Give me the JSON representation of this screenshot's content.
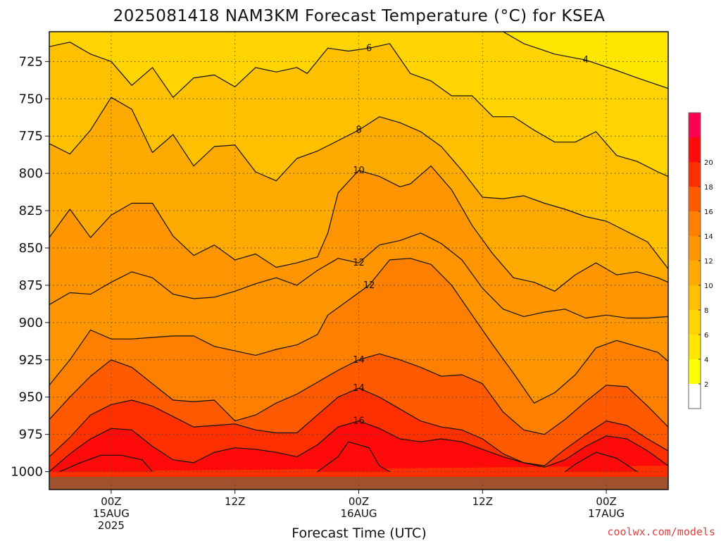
{
  "chart_data": {
    "type": "heatmap",
    "title": "2025081418 NAM3KM Forecast Temperature (°C) for KSEA",
    "xlabel": "Forecast Time (UTC)",
    "ylabel": "",
    "credit": "coolwx.com/models",
    "y_axis": {
      "unit": "hPa",
      "range": [
        1012,
        705
      ],
      "ticks": [
        725,
        750,
        775,
        800,
        825,
        850,
        875,
        900,
        925,
        950,
        975,
        1000
      ]
    },
    "x_axis": {
      "unit": "hours from 2025-08-14 18Z",
      "range": [
        0,
        60
      ],
      "ticks": [
        {
          "hour": 6,
          "line1": "00Z",
          "line2": "15AUG",
          "line3": "2025"
        },
        {
          "hour": 18,
          "line1": "12Z",
          "line2": "",
          "line3": ""
        },
        {
          "hour": 30,
          "line1": "00Z",
          "line2": "16AUG",
          "line3": ""
        },
        {
          "hour": 42,
          "line1": "12Z",
          "line2": "",
          "line3": ""
        },
        {
          "hour": 54,
          "line1": "00Z",
          "line2": "17AUG",
          "line3": ""
        }
      ]
    },
    "colorbar": {
      "levels": [
        0,
        2,
        4,
        6,
        8,
        10,
        12,
        14,
        16,
        18,
        20,
        22
      ],
      "labels": [
        "2",
        "4",
        "6",
        "8",
        "10",
        "12",
        "14",
        "16",
        "18",
        "20"
      ],
      "colors": [
        "#ffffff",
        "#ffff00",
        "#ffe600",
        "#ffd400",
        "#ffc000",
        "#ffaa00",
        "#ff9500",
        "#ff7f00",
        "#ff5a00",
        "#ff3000",
        "#ff0a0a",
        "#ff0050"
      ]
    },
    "ground_color": "#a0522d",
    "contours": [
      {
        "label": "4",
        "points": [
          [
            44,
            705
          ],
          [
            46,
            713
          ],
          [
            49,
            720
          ],
          [
            52,
            724
          ],
          [
            55,
            731
          ],
          [
            57,
            736
          ],
          [
            60,
            743
          ]
        ]
      },
      {
        "label": "6",
        "points": [
          [
            0,
            715
          ],
          [
            2,
            712
          ],
          [
            4,
            720
          ],
          [
            6,
            725
          ],
          [
            8,
            741
          ],
          [
            10,
            729
          ],
          [
            12,
            749
          ],
          [
            14,
            736
          ],
          [
            16,
            734
          ],
          [
            18,
            742
          ],
          [
            20,
            729
          ],
          [
            22,
            732
          ],
          [
            24,
            729
          ],
          [
            25,
            733
          ],
          [
            27,
            716
          ],
          [
            29,
            718
          ],
          [
            31,
            716
          ],
          [
            33,
            713
          ],
          [
            35,
            733
          ],
          [
            37,
            738
          ],
          [
            39,
            748
          ],
          [
            41,
            748
          ],
          [
            43,
            762
          ],
          [
            45,
            762
          ],
          [
            47,
            771
          ],
          [
            49,
            779
          ],
          [
            51,
            779
          ],
          [
            53,
            772
          ],
          [
            55,
            788
          ],
          [
            57,
            792
          ],
          [
            59,
            799
          ],
          [
            60,
            802
          ]
        ]
      },
      {
        "label": "8",
        "points": [
          [
            0,
            780
          ],
          [
            2,
            787
          ],
          [
            4,
            771
          ],
          [
            6,
            749
          ],
          [
            8,
            757
          ],
          [
            10,
            786
          ],
          [
            12,
            774
          ],
          [
            14,
            795
          ],
          [
            16,
            782
          ],
          [
            18,
            781
          ],
          [
            20,
            799
          ],
          [
            22,
            805
          ],
          [
            24,
            790
          ],
          [
            26,
            785
          ],
          [
            28,
            778
          ],
          [
            30,
            771
          ],
          [
            32,
            762
          ],
          [
            34,
            766
          ],
          [
            36,
            772
          ],
          [
            38,
            782
          ],
          [
            40,
            798
          ],
          [
            42,
            816
          ],
          [
            44,
            817
          ],
          [
            46,
            815
          ],
          [
            48,
            820
          ],
          [
            50,
            824
          ],
          [
            52,
            829
          ],
          [
            54,
            832
          ],
          [
            56,
            839
          ],
          [
            58,
            846
          ],
          [
            60,
            864
          ]
        ]
      },
      {
        "label": "10",
        "points": [
          [
            0,
            843
          ],
          [
            2,
            824
          ],
          [
            4,
            843
          ],
          [
            6,
            828
          ],
          [
            8,
            820
          ],
          [
            10,
            820
          ],
          [
            12,
            842
          ],
          [
            14,
            855
          ],
          [
            16,
            848
          ],
          [
            18,
            858
          ],
          [
            20,
            854
          ],
          [
            22,
            863
          ],
          [
            24,
            860
          ],
          [
            26,
            856
          ],
          [
            27,
            840
          ],
          [
            28,
            813
          ],
          [
            30,
            798
          ],
          [
            32,
            802
          ],
          [
            34,
            809
          ],
          [
            35,
            807
          ],
          [
            37,
            795
          ],
          [
            39,
            811
          ],
          [
            41,
            835
          ],
          [
            43,
            854
          ],
          [
            45,
            870
          ],
          [
            47,
            873
          ],
          [
            49,
            879
          ],
          [
            51,
            868
          ],
          [
            53,
            860
          ],
          [
            55,
            868
          ],
          [
            57,
            866
          ],
          [
            59,
            870
          ],
          [
            60,
            873
          ]
        ]
      },
      {
        "label": "12",
        "points": [
          [
            0,
            888
          ],
          [
            2,
            880
          ],
          [
            4,
            881
          ],
          [
            6,
            873
          ],
          [
            8,
            866
          ],
          [
            10,
            870
          ],
          [
            12,
            881
          ],
          [
            14,
            884
          ],
          [
            16,
            883
          ],
          [
            18,
            879
          ],
          [
            20,
            874
          ],
          [
            22,
            870
          ],
          [
            24,
            875
          ],
          [
            26,
            865
          ],
          [
            28,
            857
          ],
          [
            30,
            860
          ],
          [
            32,
            848
          ],
          [
            34,
            845
          ],
          [
            36,
            840
          ],
          [
            38,
            847
          ],
          [
            40,
            858
          ],
          [
            42,
            877
          ],
          [
            44,
            891
          ],
          [
            46,
            896
          ],
          [
            48,
            893
          ],
          [
            50,
            891
          ],
          [
            52,
            897
          ],
          [
            54,
            895
          ],
          [
            56,
            897
          ],
          [
            58,
            897
          ],
          [
            60,
            896
          ]
        ]
      },
      {
        "label": "12",
        "points": [
          [
            0,
            942
          ],
          [
            2,
            925
          ],
          [
            4,
            905
          ],
          [
            6,
            911
          ],
          [
            8,
            911
          ],
          [
            10,
            910
          ],
          [
            12,
            909
          ],
          [
            14,
            909
          ],
          [
            16,
            916
          ],
          [
            18,
            919
          ],
          [
            20,
            922
          ],
          [
            22,
            918
          ],
          [
            24,
            915
          ],
          [
            26,
            908
          ],
          [
            27,
            895
          ],
          [
            29,
            885
          ],
          [
            31,
            875
          ],
          [
            33,
            858
          ],
          [
            35,
            857
          ],
          [
            37,
            861
          ],
          [
            39,
            875
          ],
          [
            41,
            895
          ],
          [
            43,
            915
          ],
          [
            45,
            934
          ],
          [
            47,
            954
          ],
          [
            49,
            947
          ],
          [
            51,
            935
          ],
          [
            53,
            917
          ],
          [
            55,
            912
          ],
          [
            57,
            916
          ],
          [
            59,
            920
          ],
          [
            60,
            926
          ]
        ]
      },
      {
        "label": "14",
        "points": [
          [
            0,
            965
          ],
          [
            2,
            950
          ],
          [
            4,
            936
          ],
          [
            6,
            925
          ],
          [
            8,
            930
          ],
          [
            10,
            941
          ],
          [
            12,
            952
          ],
          [
            14,
            953
          ],
          [
            16,
            952
          ],
          [
            18,
            966
          ],
          [
            20,
            962
          ],
          [
            22,
            954
          ],
          [
            24,
            948
          ],
          [
            26,
            940
          ],
          [
            28,
            932
          ],
          [
            30,
            925
          ],
          [
            32,
            921
          ],
          [
            34,
            925
          ],
          [
            36,
            930
          ],
          [
            38,
            936
          ],
          [
            40,
            935
          ],
          [
            42,
            941
          ],
          [
            44,
            960
          ],
          [
            46,
            972
          ],
          [
            48,
            975
          ],
          [
            50,
            965
          ],
          [
            52,
            953
          ],
          [
            54,
            942
          ],
          [
            56,
            943
          ],
          [
            58,
            956
          ],
          [
            60,
            970
          ]
        ]
      },
      {
        "label": "14",
        "points": [
          [
            0,
            990
          ],
          [
            2,
            977
          ],
          [
            4,
            962
          ],
          [
            6,
            955
          ],
          [
            8,
            952
          ],
          [
            10,
            956
          ],
          [
            12,
            963
          ],
          [
            14,
            970
          ],
          [
            16,
            969
          ],
          [
            18,
            968
          ],
          [
            20,
            972
          ],
          [
            22,
            974
          ],
          [
            24,
            974
          ],
          [
            26,
            962
          ],
          [
            28,
            950
          ],
          [
            30,
            944
          ],
          [
            32,
            950
          ],
          [
            34,
            958
          ],
          [
            36,
            966
          ],
          [
            38,
            970
          ],
          [
            40,
            972
          ],
          [
            42,
            978
          ],
          [
            44,
            988
          ],
          [
            46,
            994
          ],
          [
            48,
            996
          ],
          [
            50,
            985
          ],
          [
            52,
            975
          ],
          [
            54,
            966
          ],
          [
            56,
            969
          ],
          [
            58,
            978
          ],
          [
            60,
            986
          ]
        ]
      },
      {
        "label": "16",
        "points": [
          [
            0,
            1000
          ],
          [
            2,
            988
          ],
          [
            4,
            978
          ],
          [
            6,
            971
          ],
          [
            8,
            972
          ],
          [
            10,
            983
          ],
          [
            12,
            992
          ],
          [
            14,
            994
          ],
          [
            16,
            987
          ],
          [
            18,
            984
          ],
          [
            20,
            985
          ],
          [
            22,
            987
          ],
          [
            24,
            990
          ],
          [
            26,
            982
          ],
          [
            28,
            970
          ],
          [
            30,
            966
          ],
          [
            32,
            971
          ],
          [
            34,
            978
          ],
          [
            36,
            980
          ],
          [
            38,
            978
          ],
          [
            40,
            980
          ],
          [
            42,
            985
          ],
          [
            44,
            990
          ],
          [
            46,
            994
          ],
          [
            48,
            997
          ],
          [
            50,
            992
          ],
          [
            52,
            983
          ],
          [
            54,
            976
          ],
          [
            56,
            978
          ],
          [
            58,
            986
          ],
          [
            60,
            996
          ]
        ]
      },
      {
        "label": "",
        "points": [
          [
            1,
            1000
          ],
          [
            3,
            994
          ],
          [
            5,
            989
          ],
          [
            7,
            989
          ],
          [
            9,
            992
          ],
          [
            10,
            1000
          ]
        ]
      },
      {
        "label": "",
        "points": [
          [
            26,
            1000
          ],
          [
            28,
            990
          ],
          [
            29,
            980
          ],
          [
            31,
            984
          ],
          [
            32,
            996
          ],
          [
            33,
            1000
          ]
        ]
      },
      {
        "label": "",
        "points": [
          [
            50,
            1000
          ],
          [
            51,
            995
          ],
          [
            53,
            987
          ],
          [
            55,
            991
          ],
          [
            57,
            1000
          ]
        ]
      }
    ]
  }
}
